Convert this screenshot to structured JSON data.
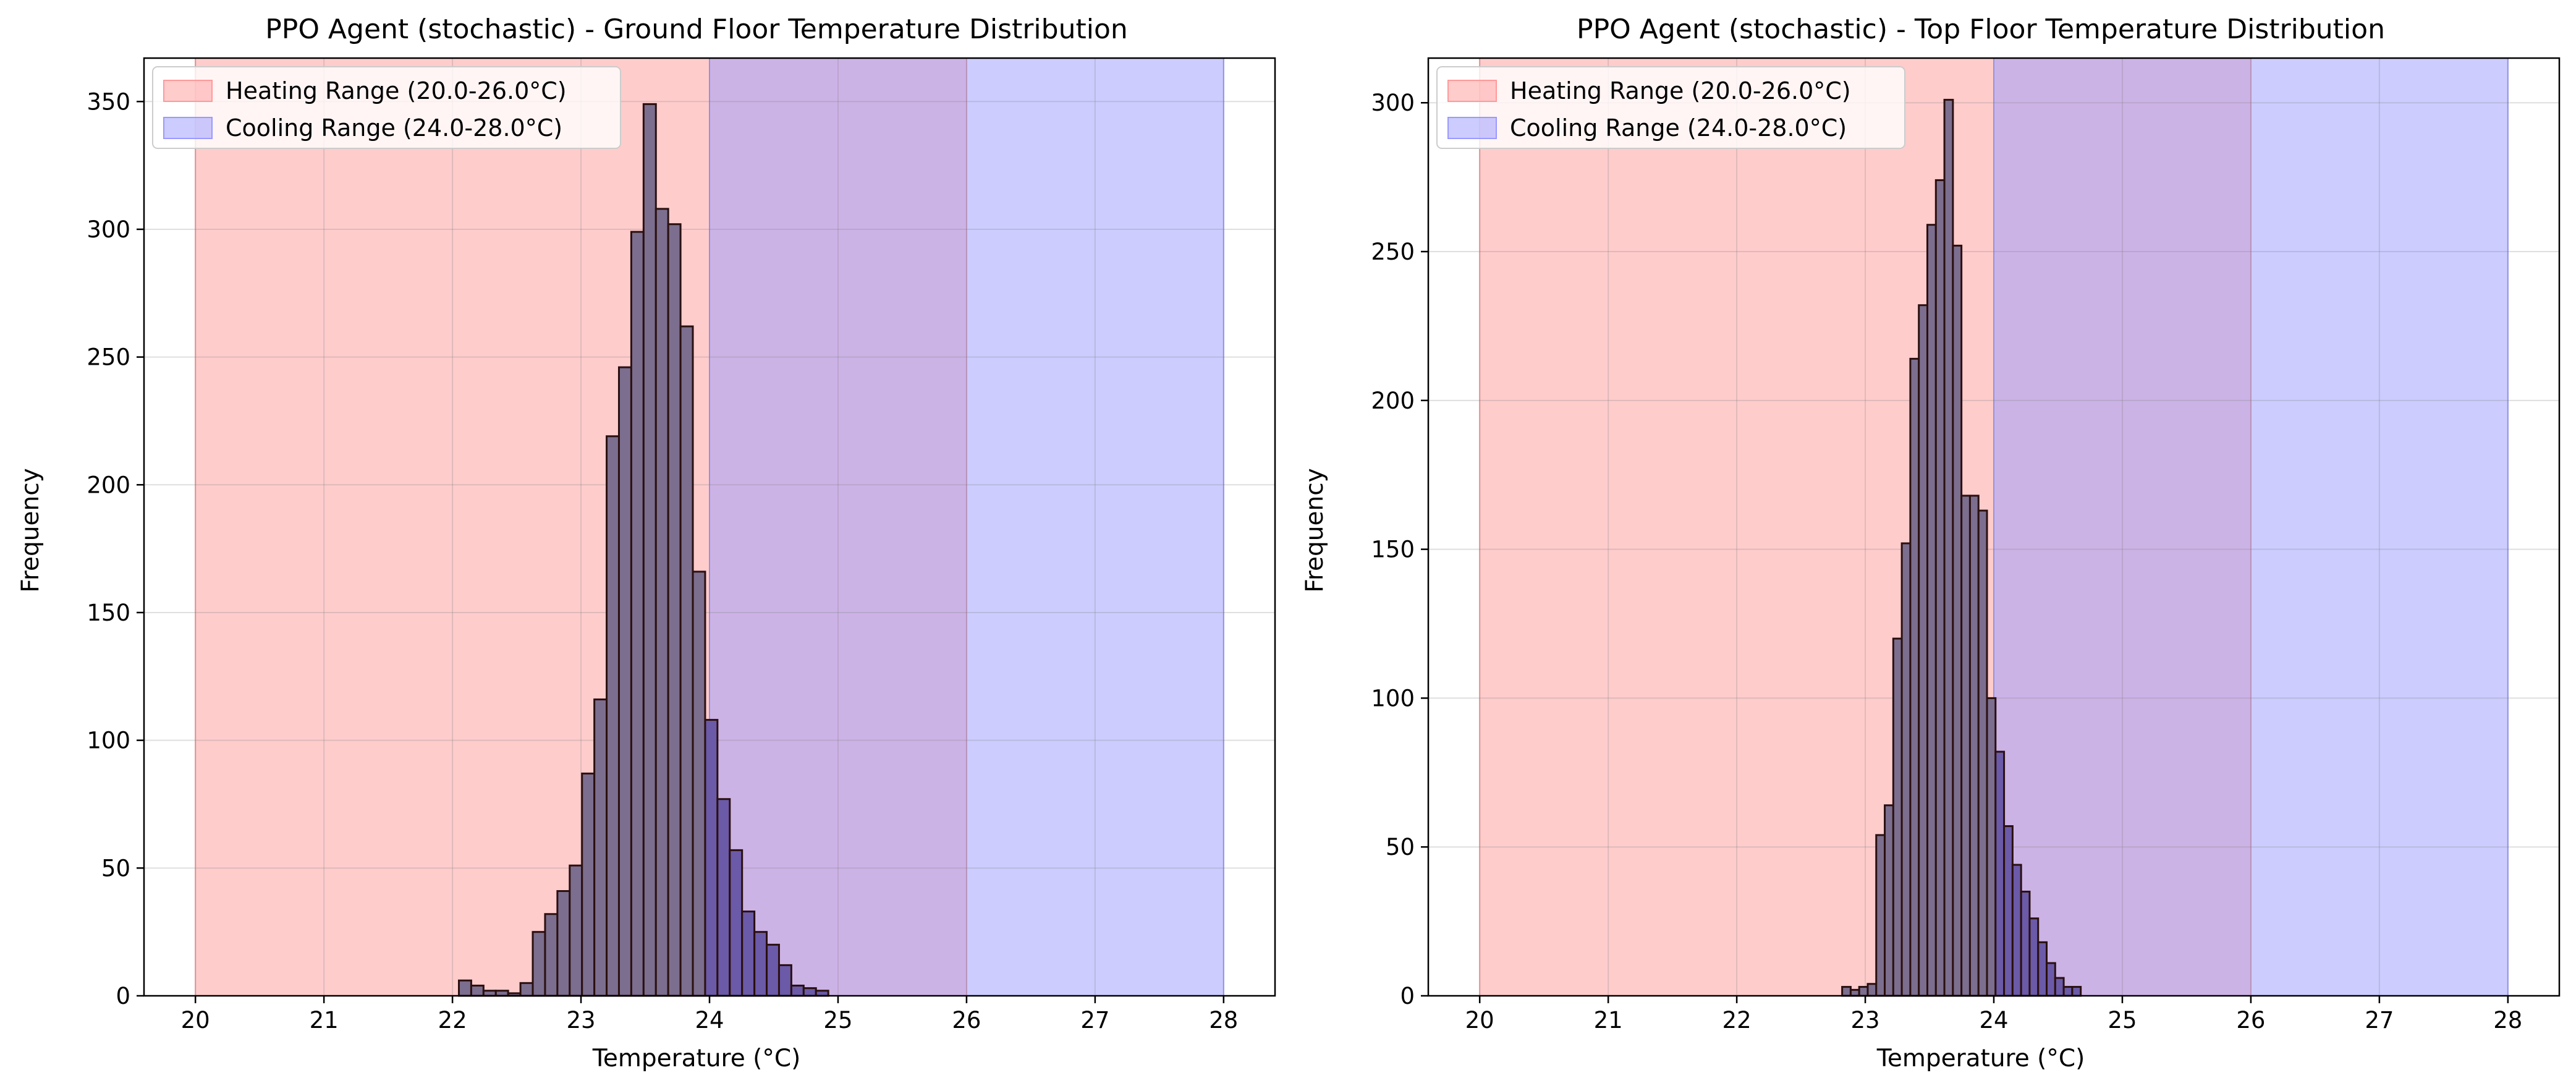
{
  "figure": {
    "background": "#ffffff"
  },
  "colors": {
    "heating_fill": "#ff9999",
    "cooling_fill": "#9999ff",
    "bar_fill_in_heating": "#7c6e8e",
    "bar_fill_in_overlap": "#6b5aa8",
    "bar_edge": "#2a1010",
    "grid": "#d9d9d9"
  },
  "chart_data": [
    {
      "type": "bar",
      "title": "PPO Agent (stochastic) - Ground Floor Temperature Distribution",
      "xlabel": "Temperature (°C)",
      "ylabel": "Frequency",
      "xlim": [
        19.6,
        28.4
      ],
      "ylim": [
        0,
        367
      ],
      "xticks": [
        20,
        21,
        22,
        23,
        24,
        25,
        26,
        27,
        28
      ],
      "yticks": [
        0,
        50,
        100,
        150,
        200,
        250,
        300,
        350
      ],
      "grid": true,
      "legend_position": "top-left",
      "ranges": [
        {
          "label": "Heating Range (20.0-26.0°C)",
          "from": 20.0,
          "to": 26.0,
          "color": "#ff9999"
        },
        {
          "label": "Cooling Range (24.0-28.0°C)",
          "from": 24.0,
          "to": 28.0,
          "color": "#9999ff"
        }
      ],
      "bins": {
        "start": 22.05,
        "width": 0.0958,
        "counts": [
          6,
          4,
          2,
          2,
          1,
          5,
          25,
          32,
          41,
          51,
          87,
          116,
          219,
          246,
          299,
          349,
          308,
          302,
          262,
          166,
          108,
          77,
          57,
          33,
          25,
          20,
          12,
          4,
          3,
          2
        ]
      }
    },
    {
      "type": "bar",
      "title": "PPO Agent (stochastic) - Top Floor Temperature Distribution",
      "xlabel": "Temperature (°C)",
      "ylabel": "Frequency",
      "xlim": [
        19.6,
        28.4
      ],
      "ylim": [
        0,
        315
      ],
      "xticks": [
        20,
        21,
        22,
        23,
        24,
        25,
        26,
        27,
        28
      ],
      "yticks": [
        0,
        50,
        100,
        150,
        200,
        250,
        300
      ],
      "grid": true,
      "legend_position": "top-left",
      "ranges": [
        {
          "label": "Heating Range (20.0-26.0°C)",
          "from": 20.0,
          "to": 26.0,
          "color": "#ff9999"
        },
        {
          "label": "Cooling Range (24.0-28.0°C)",
          "from": 24.0,
          "to": 28.0,
          "color": "#9999ff"
        }
      ],
      "bins": {
        "start": 22.82,
        "width": 0.0663,
        "counts": [
          3,
          2,
          3,
          4,
          54,
          64,
          120,
          152,
          214,
          232,
          259,
          274,
          301,
          252,
          168,
          168,
          163,
          100,
          82,
          57,
          44,
          35,
          26,
          18,
          11,
          6,
          3,
          3
        ]
      }
    }
  ]
}
